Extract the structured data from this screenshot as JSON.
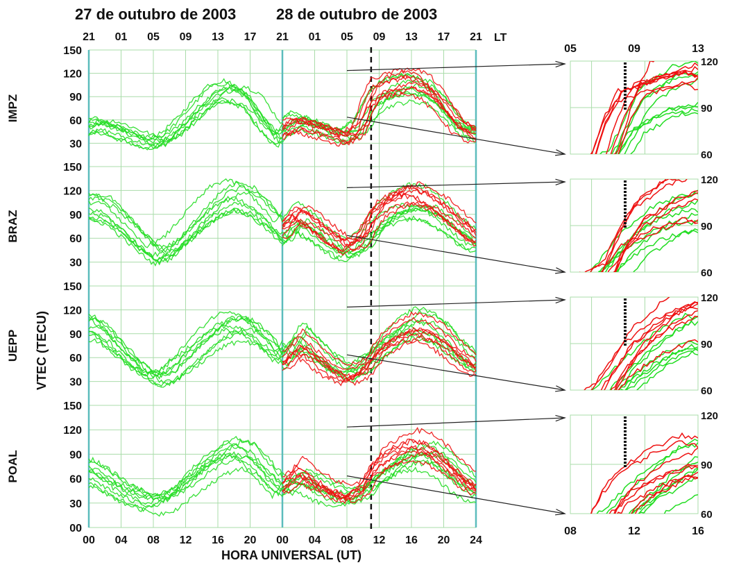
{
  "dates": [
    "27 de outubro de 2003",
    "28 de outubro de 2003"
  ],
  "lt_label": "LT",
  "lt_ticks": [
    "21",
    "01",
    "05",
    "09",
    "13",
    "17",
    "21",
    "01",
    "05",
    "09",
    "13",
    "17",
    "21"
  ],
  "ut_ticks": [
    "00",
    "04",
    "08",
    "12",
    "16",
    "20",
    "00",
    "04",
    "08",
    "12",
    "16",
    "20",
    "24"
  ],
  "xlabel": "HORA UNIVERSAL (UT)",
  "ylabel": "VTEC (TECU)",
  "y_ticks": [
    "150",
    "120",
    "90",
    "60",
    "30",
    "00"
  ],
  "zoom": {
    "lt_ticks": [
      "05",
      "09",
      "13"
    ],
    "ut_ticks": [
      "08",
      "12",
      "16"
    ],
    "y_ticks": [
      "120",
      "90",
      "60"
    ]
  },
  "colors": {
    "quiet": "#22dd22",
    "storm": "#ee1111",
    "grid": "#a9dca9",
    "day_boundary": "#5bbcbc",
    "onset_line": "#111111"
  },
  "chart_data": {
    "type": "line",
    "x_unit": "UT hours from 00 UT 27 Oct 2003",
    "xlim": [
      0,
      48
    ],
    "ylim": [
      0,
      150
    ],
    "grid": true,
    "storm_onset_ut": 35,
    "zoom_xlim": [
      32,
      40
    ],
    "zoom_ylim": [
      60,
      120
    ],
    "stations": [
      {
        "name": "IMPZ",
        "quiet_mean": [
          [
            0,
            55
          ],
          [
            2,
            60
          ],
          [
            4,
            52
          ],
          [
            6,
            44
          ],
          [
            8,
            35
          ],
          [
            10,
            40
          ],
          [
            12,
            58
          ],
          [
            14,
            80
          ],
          [
            16,
            100
          ],
          [
            18,
            105
          ],
          [
            20,
            95
          ],
          [
            22,
            65
          ],
          [
            24,
            40
          ],
          [
            26,
            57
          ],
          [
            28,
            52
          ],
          [
            30,
            44
          ],
          [
            32,
            38
          ],
          [
            34,
            48
          ],
          [
            36,
            84
          ],
          [
            38,
            96
          ],
          [
            40,
            100
          ],
          [
            42,
            98
          ],
          [
            44,
            78
          ],
          [
            46,
            52
          ],
          [
            48,
            40
          ]
        ],
        "storm_mean": [
          [
            24,
            48
          ],
          [
            26,
            60
          ],
          [
            28,
            55
          ],
          [
            30,
            48
          ],
          [
            32,
            40
          ],
          [
            34,
            52
          ],
          [
            35,
            85
          ],
          [
            36,
            105
          ],
          [
            38,
            112
          ],
          [
            40,
            118
          ],
          [
            42,
            110
          ],
          [
            44,
            88
          ],
          [
            46,
            60
          ],
          [
            48,
            45
          ]
        ]
      },
      {
        "name": "BRAZ",
        "quiet_mean": [
          [
            0,
            95
          ],
          [
            2,
            90
          ],
          [
            4,
            72
          ],
          [
            6,
            52
          ],
          [
            8,
            35
          ],
          [
            10,
            42
          ],
          [
            12,
            62
          ],
          [
            14,
            82
          ],
          [
            16,
            100
          ],
          [
            18,
            108
          ],
          [
            20,
            100
          ],
          [
            22,
            82
          ],
          [
            24,
            60
          ],
          [
            26,
            85
          ],
          [
            28,
            72
          ],
          [
            30,
            55
          ],
          [
            32,
            42
          ],
          [
            34,
            55
          ],
          [
            36,
            80
          ],
          [
            38,
            95
          ],
          [
            40,
            102
          ],
          [
            42,
            100
          ],
          [
            44,
            88
          ],
          [
            46,
            70
          ],
          [
            48,
            55
          ]
        ],
        "storm_mean": [
          [
            24,
            68
          ],
          [
            26,
            90
          ],
          [
            28,
            78
          ],
          [
            30,
            62
          ],
          [
            32,
            48
          ],
          [
            34,
            58
          ],
          [
            35,
            80
          ],
          [
            36,
            95
          ],
          [
            38,
            108
          ],
          [
            40,
            115
          ],
          [
            42,
            108
          ],
          [
            44,
            95
          ],
          [
            46,
            78
          ],
          [
            48,
            60
          ]
        ]
      },
      {
        "name": "UEPP",
        "quiet_mean": [
          [
            0,
            100
          ],
          [
            2,
            88
          ],
          [
            4,
            66
          ],
          [
            6,
            48
          ],
          [
            8,
            32
          ],
          [
            10,
            38
          ],
          [
            12,
            56
          ],
          [
            14,
            75
          ],
          [
            16,
            92
          ],
          [
            18,
            100
          ],
          [
            20,
            95
          ],
          [
            22,
            78
          ],
          [
            24,
            55
          ],
          [
            26,
            85
          ],
          [
            28,
            66
          ],
          [
            30,
            48
          ],
          [
            32,
            38
          ],
          [
            34,
            48
          ],
          [
            36,
            70
          ],
          [
            38,
            88
          ],
          [
            40,
            100
          ],
          [
            42,
            96
          ],
          [
            44,
            82
          ],
          [
            46,
            62
          ],
          [
            48,
            48
          ]
        ],
        "storm_mean": [
          [
            24,
            62
          ],
          [
            26,
            86
          ],
          [
            28,
            70
          ],
          [
            30,
            52
          ],
          [
            32,
            42
          ],
          [
            34,
            52
          ],
          [
            35,
            68
          ],
          [
            36,
            82
          ],
          [
            38,
            98
          ],
          [
            40,
            108
          ],
          [
            42,
            104
          ],
          [
            44,
            90
          ],
          [
            46,
            70
          ],
          [
            48,
            55
          ]
        ]
      },
      {
        "name": "POAL",
        "quiet_mean": [
          [
            0,
            70
          ],
          [
            2,
            58
          ],
          [
            4,
            45
          ],
          [
            6,
            36
          ],
          [
            8,
            30
          ],
          [
            10,
            36
          ],
          [
            12,
            52
          ],
          [
            14,
            70
          ],
          [
            16,
            85
          ],
          [
            18,
            95
          ],
          [
            20,
            88
          ],
          [
            22,
            65
          ],
          [
            24,
            45
          ],
          [
            26,
            62
          ],
          [
            28,
            52
          ],
          [
            30,
            42
          ],
          [
            32,
            36
          ],
          [
            34,
            45
          ],
          [
            36,
            62
          ],
          [
            38,
            78
          ],
          [
            40,
            90
          ],
          [
            42,
            92
          ],
          [
            44,
            80
          ],
          [
            46,
            60
          ],
          [
            48,
            45
          ]
        ],
        "storm_mean": [
          [
            24,
            50
          ],
          [
            26,
            68
          ],
          [
            28,
            55
          ],
          [
            30,
            44
          ],
          [
            32,
            38
          ],
          [
            34,
            48
          ],
          [
            35,
            66
          ],
          [
            36,
            78
          ],
          [
            38,
            90
          ],
          [
            40,
            98
          ],
          [
            42,
            94
          ],
          [
            44,
            80
          ],
          [
            46,
            62
          ],
          [
            48,
            48
          ]
        ]
      }
    ]
  }
}
